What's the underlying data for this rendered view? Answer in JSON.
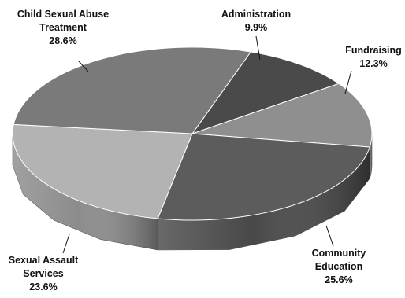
{
  "chart_data": {
    "type": "pie",
    "title": "",
    "slices": [
      {
        "label_lines": [
          "Administration"
        ],
        "value": 9.9,
        "value_text": "9.9%",
        "color": "#4a4a4a"
      },
      {
        "label_lines": [
          "Fundraising"
        ],
        "value": 12.3,
        "value_text": "12.3%",
        "color": "#8f8f8f"
      },
      {
        "label_lines": [
          "Community",
          "Education"
        ],
        "value": 25.6,
        "value_text": "25.6%",
        "color": "#5c5c5c"
      },
      {
        "label_lines": [
          "Sexual Assault",
          "Services"
        ],
        "value": 23.6,
        "value_text": "23.6%",
        "color": "#b3b3b3"
      },
      {
        "label_lines": [
          "Child Sexual Abuse",
          "Treatment"
        ],
        "value": 28.6,
        "value_text": "28.6%",
        "color": "#7a7a7a"
      }
    ],
    "start_angle_deg": 71,
    "three_d": true,
    "legend": "none"
  }
}
